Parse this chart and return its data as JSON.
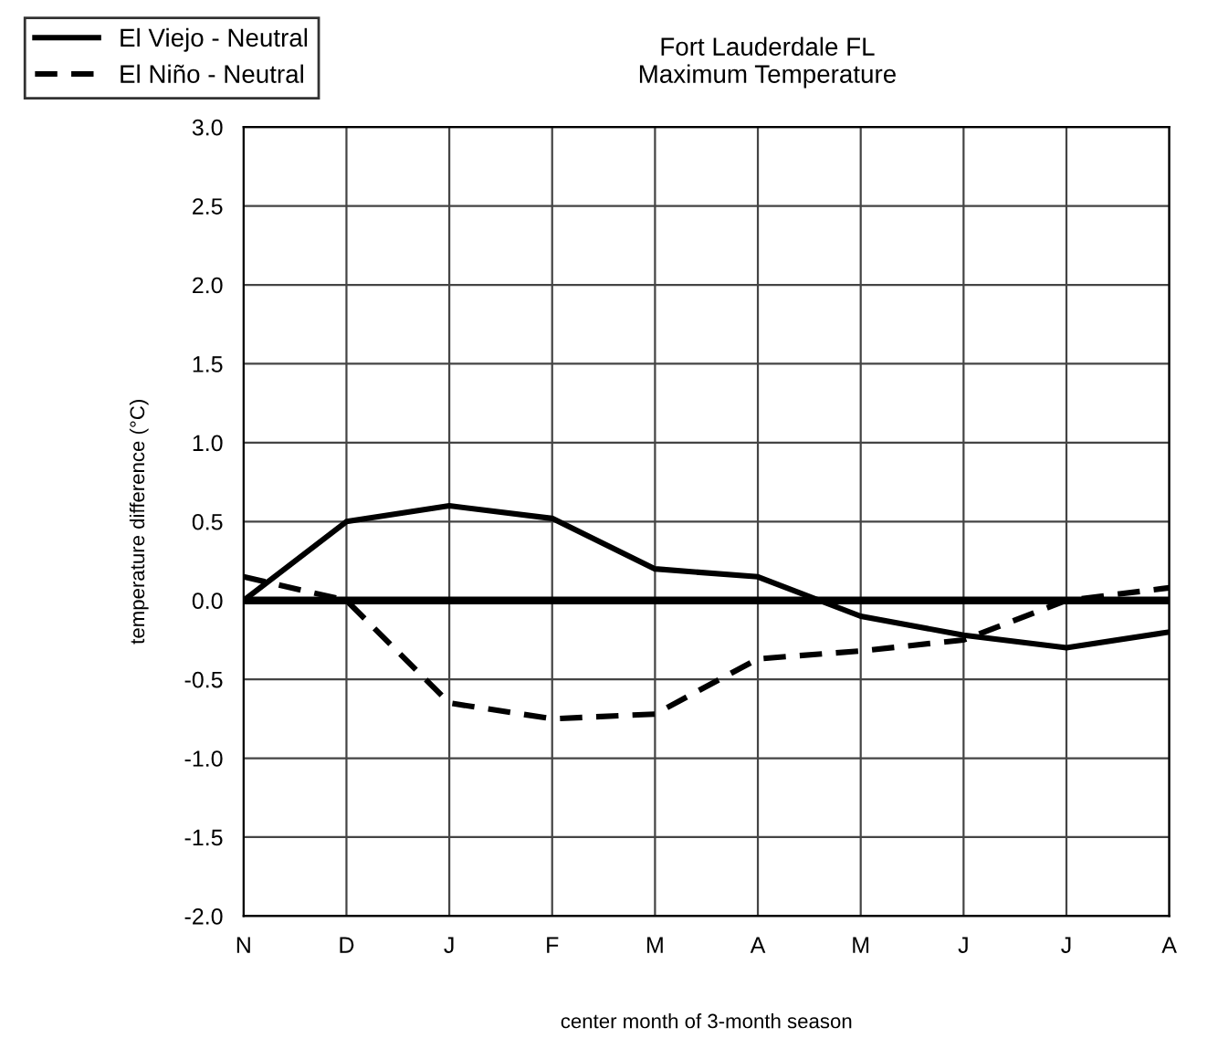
{
  "chart_data": {
    "type": "line",
    "title": "Fort Lauderdale FL\nMaximum Temperature",
    "xlabel": "center month of 3-month season",
    "ylabel": "temperature difference (°C)",
    "categories": [
      "N",
      "D",
      "J",
      "F",
      "M",
      "A",
      "M",
      "J",
      "J",
      "A"
    ],
    "series": [
      {
        "name": "El Viejo - Neutral",
        "color": "#000000",
        "line_style": "solid",
        "values": [
          0.0,
          0.5,
          0.6,
          0.52,
          0.2,
          0.15,
          -0.1,
          -0.22,
          -0.3,
          -0.2
        ]
      },
      {
        "name": "El Niño - Neutral",
        "color": "#000000",
        "line_style": "dashed",
        "values": [
          0.15,
          0.0,
          -0.65,
          -0.75,
          -0.72,
          -0.37,
          -0.32,
          -0.25,
          0.0,
          0.08
        ]
      }
    ],
    "ylim": [
      -2.0,
      3.0
    ],
    "yticks": [
      {
        "value": -2.0,
        "label": "-2.0"
      },
      {
        "value": -1.5,
        "label": "-1.5"
      },
      {
        "value": -1.0,
        "label": "-1.0"
      },
      {
        "value": -0.5,
        "label": "-0.5"
      },
      {
        "value": 0.0,
        "label": "0.0"
      },
      {
        "value": 0.5,
        "label": "0.5"
      },
      {
        "value": 1.0,
        "label": "1.0"
      },
      {
        "value": 1.5,
        "label": "1.5"
      },
      {
        "value": 2.0,
        "label": "2.0"
      },
      {
        "value": 2.5,
        "label": "2.5"
      },
      {
        "value": 3.0,
        "label": "3.0"
      }
    ],
    "ref_lines": [
      {
        "axis": "y",
        "value": 0.0,
        "color": "#000000"
      }
    ],
    "grid": true,
    "legend": "top left",
    "marker": "none"
  }
}
